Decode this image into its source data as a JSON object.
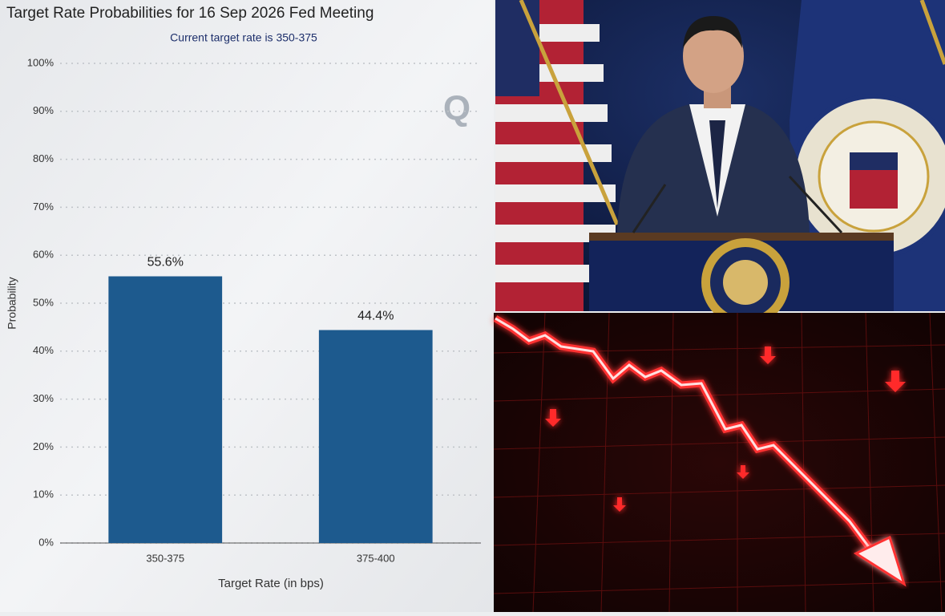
{
  "chart_data": {
    "type": "bar",
    "title": "Target Rate Probabilities for 16 Sep 2026 Fed Meeting",
    "subtitle": "Current target rate is 350-375",
    "watermark": "Q",
    "x_label": "Target Rate (in bps)",
    "y_label": "Probability",
    "categories": [
      "350-375",
      "375-400"
    ],
    "values": [
      55.6,
      44.4
    ],
    "value_labels": [
      "55.6%",
      "44.4%"
    ],
    "color": "#1d5a8e",
    "ylim": [
      0,
      100
    ],
    "yticks": [
      {
        "value": 0,
        "label": "0%"
      },
      {
        "value": 10,
        "label": "10%"
      },
      {
        "value": 20,
        "label": "20%"
      },
      {
        "value": 30,
        "label": "30%"
      },
      {
        "value": 40,
        "label": "40%"
      },
      {
        "value": 50,
        "label": "50%"
      },
      {
        "value": 60,
        "label": "60%"
      },
      {
        "value": 70,
        "label": "70%"
      },
      {
        "value": 80,
        "label": "80%"
      },
      {
        "value": 90,
        "label": "90%"
      },
      {
        "value": 100,
        "label": "100%"
      }
    ],
    "grid": true
  }
}
